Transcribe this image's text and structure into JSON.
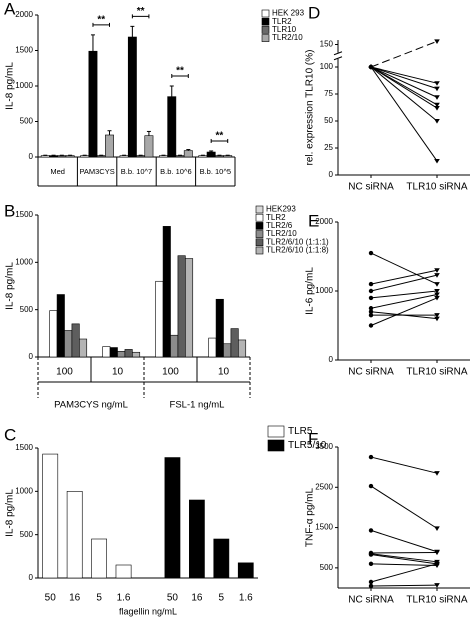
{
  "chart_data": [
    {
      "type": "bar",
      "panel_label": "A",
      "ylabel": "IL-8 pg/mL",
      "categories": [
        "Med",
        "PAM3CYS",
        "B.b. 10^7",
        "B.b. 10^6",
        "B.b. 10^5"
      ],
      "series": [
        {
          "name": "HEK 293",
          "color": "#ffffff",
          "values": [
            20,
            20,
            20,
            20,
            20
          ],
          "errors": [
            5,
            5,
            5,
            5,
            5
          ]
        },
        {
          "name": "TLR2",
          "color": "#000000",
          "values": [
            20,
            1490,
            1690,
            850,
            70
          ],
          "errors": [
            5,
            230,
            150,
            150,
            15
          ]
        },
        {
          "name": "TLR10",
          "color": "#6a6a6a",
          "values": [
            20,
            20,
            20,
            20,
            20
          ],
          "errors": [
            5,
            5,
            5,
            5,
            5
          ]
        },
        {
          "name": "TLR2/10",
          "color": "#a8a8a8",
          "values": [
            20,
            310,
            300,
            90,
            20
          ],
          "errors": [
            5,
            60,
            60,
            15,
            5
          ]
        }
      ],
      "annotations": [
        "**",
        "**",
        "**",
        "**"
      ],
      "ylim": [
        0,
        2000
      ],
      "yticks": [
        0,
        500,
        1000,
        1500,
        2000
      ]
    },
    {
      "type": "bar",
      "panel_label": "B",
      "ylabel": "IL-8 pg/mL",
      "categories": [
        "100",
        "10",
        "100",
        "10"
      ],
      "group_labels": [
        "PAM3CYS ng/mL",
        "FSL-1 ng/mL"
      ],
      "series": [
        {
          "name": "HEK293",
          "color": "#d8d8d8",
          "values": [
            0,
            0,
            0,
            0
          ]
        },
        {
          "name": "TLR2",
          "color": "#ffffff",
          "values": [
            490,
            110,
            800,
            200
          ]
        },
        {
          "name": "TLR2/6",
          "color": "#000000",
          "values": [
            660,
            100,
            1380,
            610
          ]
        },
        {
          "name": "TLR2/10",
          "color": "#8c8c8c",
          "values": [
            280,
            60,
            230,
            140
          ]
        },
        {
          "name": "TLR2/6/10 (1:1:1)",
          "color": "#5e5e5e",
          "values": [
            350,
            80,
            1070,
            300
          ]
        },
        {
          "name": "TLR2/6/10 (1:1:8)",
          "color": "#b4b4b4",
          "values": [
            190,
            50,
            1040,
            180
          ]
        }
      ],
      "ylim": [
        0,
        1500
      ],
      "yticks": [
        0,
        500,
        1000,
        1500
      ]
    },
    {
      "type": "bar",
      "panel_label": "C",
      "ylabel": "IL-8 pg/mL",
      "xlabel": "flagellin ng/mL",
      "categories": [
        "50",
        "16",
        "5",
        "1.6",
        "50",
        "16",
        "5",
        "1.6"
      ],
      "series": [
        {
          "name": "TLR5",
          "color": "#ffffff",
          "values": [
            1430,
            1000,
            450,
            150,
            null,
            null,
            null,
            null
          ]
        },
        {
          "name": "TLR5/10",
          "color": "#000000",
          "values": [
            null,
            null,
            null,
            null,
            1390,
            900,
            450,
            175
          ]
        }
      ],
      "ylim": [
        0,
        1500
      ],
      "yticks": [
        0,
        500,
        1000,
        1500
      ]
    },
    {
      "type": "paired",
      "panel_label": "D",
      "ylabel": "rel. expression TLR10 (%)",
      "categories": [
        "NC siRNA",
        "TLR10 siRNA"
      ],
      "pairs": [
        [
          100,
          157
        ],
        [
          100,
          85
        ],
        [
          100,
          80
        ],
        [
          100,
          72
        ],
        [
          100,
          65
        ],
        [
          100,
          62
        ],
        [
          100,
          50
        ],
        [
          100,
          13
        ]
      ],
      "ylim": [
        0,
        160
      ],
      "yticks": [
        0,
        25,
        50,
        75,
        100,
        150
      ],
      "axis_break": true
    },
    {
      "type": "paired",
      "panel_label": "E",
      "ylabel": "IL-6 pg/mL",
      "categories": [
        "NC siRNA",
        "TLR10 siRNA"
      ],
      "pairs": [
        [
          1550,
          1100
        ],
        [
          1100,
          1300
        ],
        [
          1000,
          1230
        ],
        [
          900,
          1000
        ],
        [
          750,
          950
        ],
        [
          700,
          600
        ],
        [
          650,
          650
        ],
        [
          500,
          900
        ]
      ],
      "ylim": [
        0,
        2000
      ],
      "yticks": [
        0,
        1000,
        2000
      ]
    },
    {
      "type": "paired",
      "panel_label": "F",
      "ylabel": "TNF-α pg/mL",
      "categories": [
        "NC siRNA",
        "TLR10 siRNA"
      ],
      "pairs": [
        [
          3250,
          2850
        ],
        [
          2530,
          1480
        ],
        [
          1430,
          900
        ],
        [
          870,
          880
        ],
        [
          850,
          650
        ],
        [
          830,
          600
        ],
        [
          600,
          560
        ],
        [
          150,
          600
        ],
        [
          50,
          70
        ]
      ],
      "ylim": [
        0,
        3500
      ],
      "yticks": [
        500,
        1500,
        2500,
        3500
      ]
    }
  ]
}
